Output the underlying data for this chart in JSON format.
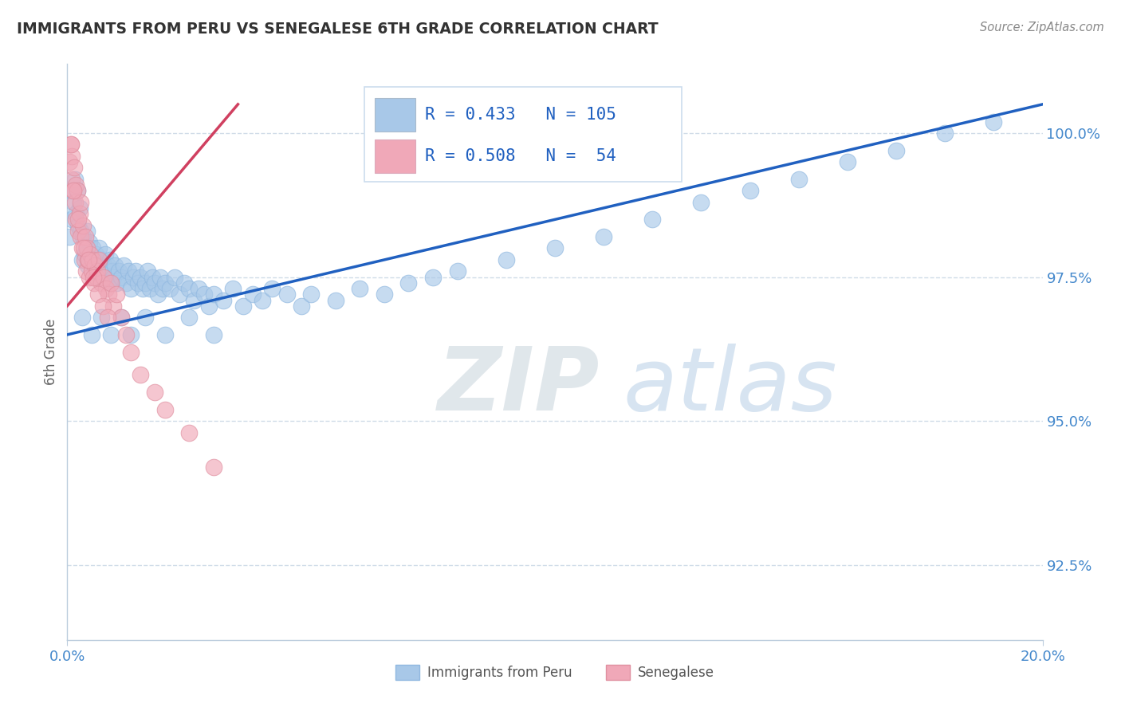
{
  "title": "IMMIGRANTS FROM PERU VS SENEGALESE 6TH GRADE CORRELATION CHART",
  "source": "Source: ZipAtlas.com",
  "ylabel": "6th Grade",
  "yticks": [
    92.5,
    95.0,
    97.5,
    100.0
  ],
  "ytick_labels": [
    "92.5%",
    "95.0%",
    "97.5%",
    "100.0%"
  ],
  "xmin": 0.0,
  "xmax": 20.0,
  "ymin": 91.2,
  "ymax": 101.2,
  "blue_R": 0.433,
  "blue_N": 105,
  "pink_R": 0.508,
  "pink_N": 54,
  "blue_color": "#a8c8e8",
  "blue_edge_color": "#90b8e0",
  "blue_line_color": "#2060c0",
  "pink_color": "#f0a8b8",
  "pink_edge_color": "#e090a0",
  "pink_line_color": "#d04060",
  "legend_blue_label": "Immigrants from Peru",
  "legend_pink_label": "Senegalese",
  "watermark_zip": "ZIP",
  "watermark_atlas": "atlas",
  "watermark_color_zip": "#c8d4e0",
  "watermark_color_atlas": "#b0c8e8",
  "blue_scatter_x": [
    0.05,
    0.08,
    0.1,
    0.12,
    0.15,
    0.18,
    0.2,
    0.22,
    0.25,
    0.28,
    0.3,
    0.32,
    0.35,
    0.38,
    0.4,
    0.42,
    0.45,
    0.48,
    0.5,
    0.52,
    0.55,
    0.58,
    0.6,
    0.62,
    0.65,
    0.68,
    0.7,
    0.72,
    0.75,
    0.78,
    0.8,
    0.82,
    0.85,
    0.88,
    0.9,
    0.92,
    0.95,
    0.98,
    1.0,
    1.05,
    1.1,
    1.15,
    1.2,
    1.25,
    1.3,
    1.35,
    1.4,
    1.45,
    1.5,
    1.55,
    1.6,
    1.65,
    1.7,
    1.75,
    1.8,
    1.85,
    1.9,
    1.95,
    2.0,
    2.1,
    2.2,
    2.3,
    2.4,
    2.5,
    2.6,
    2.7,
    2.8,
    2.9,
    3.0,
    3.2,
    3.4,
    3.6,
    3.8,
    4.0,
    4.2,
    4.5,
    4.8,
    5.0,
    5.5,
    6.0,
    6.5,
    7.0,
    7.5,
    8.0,
    9.0,
    10.0,
    11.0,
    12.0,
    13.0,
    14.0,
    15.0,
    16.0,
    17.0,
    18.0,
    19.0,
    0.3,
    0.5,
    0.7,
    0.9,
    1.1,
    1.3,
    1.6,
    2.0,
    2.5,
    3.0
  ],
  "blue_scatter_y": [
    98.2,
    99.0,
    98.5,
    98.8,
    99.2,
    98.6,
    99.0,
    98.4,
    98.7,
    98.3,
    97.8,
    98.2,
    97.9,
    98.0,
    98.3,
    97.7,
    98.1,
    97.9,
    97.8,
    98.0,
    97.6,
    97.9,
    97.7,
    97.8,
    98.0,
    97.5,
    97.8,
    97.6,
    97.7,
    97.9,
    97.5,
    97.7,
    97.6,
    97.8,
    97.4,
    97.6,
    97.5,
    97.7,
    97.4,
    97.6,
    97.5,
    97.7,
    97.4,
    97.6,
    97.3,
    97.5,
    97.6,
    97.4,
    97.5,
    97.3,
    97.4,
    97.6,
    97.3,
    97.5,
    97.4,
    97.2,
    97.5,
    97.3,
    97.4,
    97.3,
    97.5,
    97.2,
    97.4,
    97.3,
    97.1,
    97.3,
    97.2,
    97.0,
    97.2,
    97.1,
    97.3,
    97.0,
    97.2,
    97.1,
    97.3,
    97.2,
    97.0,
    97.2,
    97.1,
    97.3,
    97.2,
    97.4,
    97.5,
    97.6,
    97.8,
    98.0,
    98.2,
    98.5,
    98.8,
    99.0,
    99.2,
    99.5,
    99.7,
    100.0,
    100.2,
    96.8,
    96.5,
    96.8,
    96.5,
    96.8,
    96.5,
    96.8,
    96.5,
    96.8,
    96.5
  ],
  "pink_scatter_x": [
    0.05,
    0.07,
    0.09,
    0.1,
    0.12,
    0.14,
    0.15,
    0.17,
    0.18,
    0.2,
    0.22,
    0.25,
    0.27,
    0.28,
    0.3,
    0.32,
    0.35,
    0.37,
    0.38,
    0.4,
    0.42,
    0.45,
    0.47,
    0.5,
    0.52,
    0.55,
    0.57,
    0.6,
    0.62,
    0.65,
    0.7,
    0.75,
    0.8,
    0.85,
    0.9,
    0.95,
    1.0,
    1.1,
    1.2,
    1.3,
    1.5,
    1.8,
    2.0,
    2.5,
    3.0,
    0.08,
    0.13,
    0.23,
    0.33,
    0.43,
    0.53,
    0.63,
    0.73,
    0.83
  ],
  "pink_scatter_y": [
    99.5,
    99.8,
    99.2,
    99.6,
    99.0,
    99.4,
    98.8,
    99.1,
    98.5,
    99.0,
    98.3,
    98.6,
    98.2,
    98.8,
    98.0,
    98.4,
    97.8,
    98.2,
    97.6,
    98.0,
    97.8,
    97.5,
    97.9,
    97.6,
    97.8,
    97.4,
    97.7,
    97.5,
    97.6,
    97.8,
    97.4,
    97.5,
    97.3,
    97.2,
    97.4,
    97.0,
    97.2,
    96.8,
    96.5,
    96.2,
    95.8,
    95.5,
    95.2,
    94.8,
    94.2,
    99.8,
    99.0,
    98.5,
    98.0,
    97.8,
    97.5,
    97.2,
    97.0,
    96.8
  ],
  "blue_line_x0": 0.0,
  "blue_line_x1": 20.0,
  "blue_line_y0": 96.5,
  "blue_line_y1": 100.5,
  "pink_line_x0": 0.0,
  "pink_line_x1": 3.5,
  "pink_line_y0": 97.0,
  "pink_line_y1": 100.5,
  "grid_color": "#d0dce8",
  "title_color": "#333333",
  "axis_label_color": "#666666",
  "tick_color": "#4488cc",
  "source_color": "#888888"
}
